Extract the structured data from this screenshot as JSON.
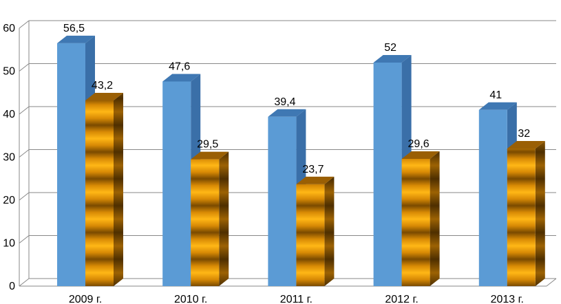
{
  "chart_data": {
    "type": "bar",
    "title": "",
    "xlabel": "",
    "ylabel": "",
    "categories": [
      "2009 г.",
      "2010 г.",
      "2011 г.",
      "2012 г.",
      "2013 г."
    ],
    "ylim": [
      0,
      60
    ],
    "yticks": [
      0,
      10,
      20,
      30,
      40,
      50,
      60
    ],
    "grid": true,
    "legend": "none",
    "style": "3d",
    "series": [
      {
        "values": [
          56.5,
          47.6,
          39.4,
          52,
          41
        ],
        "labels": [
          "56,5",
          "47,6",
          "39,4",
          "52",
          "41"
        ],
        "color": "#5b9bd5"
      },
      {
        "values": [
          43.2,
          29.5,
          23.7,
          29.6,
          32
        ],
        "labels": [
          "43,2",
          "29,5",
          "23,7",
          "29,6",
          "32"
        ],
        "color": "#f0a20a"
      }
    ]
  }
}
